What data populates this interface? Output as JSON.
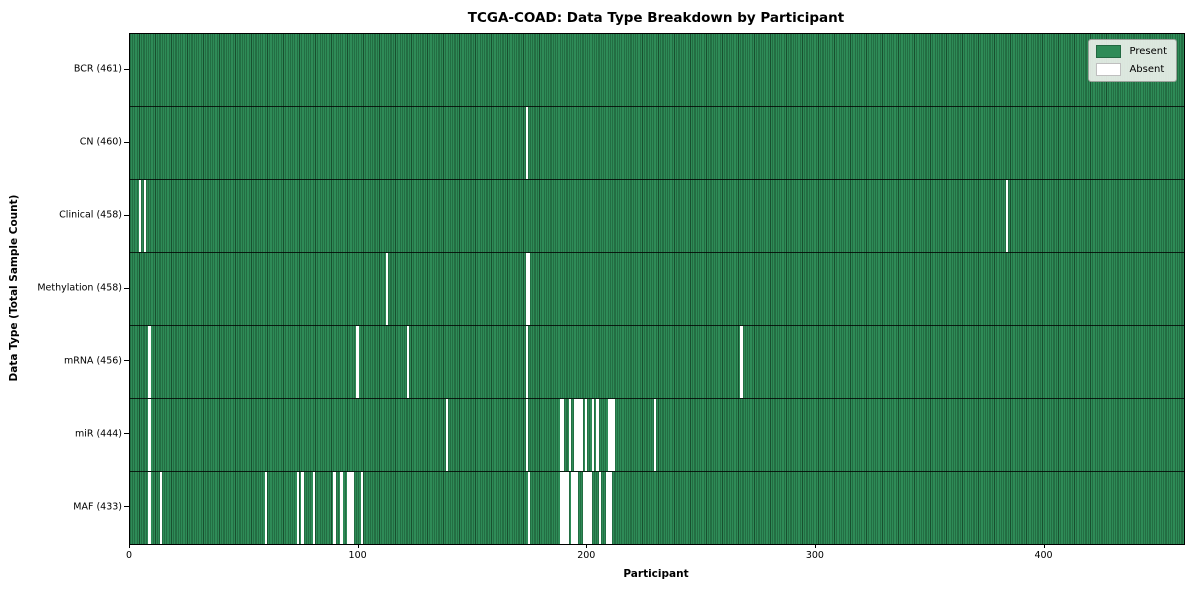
{
  "title": "TCGA-COAD: Data Type Breakdown by Participant",
  "xlabel": "Participant",
  "ylabel": "Data Type (Total Sample Count)",
  "legend": {
    "present_label": "Present",
    "absent_label": "Absent"
  },
  "colors": {
    "present": "#2e8b57",
    "present_edge": "#18502f",
    "absent": "#ffffff",
    "legend_bg": "#ecf0ea"
  },
  "chart_data": {
    "type": "heatmap",
    "title": "TCGA-COAD: Data Type Breakdown by Participant",
    "xlabel": "Participant",
    "ylabel": "Data Type (Total Sample Count)",
    "x_ticks": [
      0,
      100,
      200,
      300,
      400
    ],
    "x_range": [
      0,
      461
    ],
    "total_participants": 461,
    "legend_position": "upper right",
    "rows": [
      {
        "name": "BCR",
        "label": "BCR (461)",
        "count": 461,
        "absent": []
      },
      {
        "name": "CN",
        "label": "CN (460)",
        "count": 460,
        "absent": [
          173
        ]
      },
      {
        "name": "Clinical",
        "label": "Clinical (458)",
        "count": 458,
        "absent": [
          4,
          6,
          383
        ]
      },
      {
        "name": "Methylation",
        "label": "Methylation (458)",
        "count": 458,
        "absent": [
          112,
          173,
          174
        ]
      },
      {
        "name": "mRNA",
        "label": "mRNA (456)",
        "count": 456,
        "absent": [
          8,
          99,
          121,
          173,
          267
        ]
      },
      {
        "name": "miR",
        "label": "miR (444)",
        "count": 444,
        "absent": [
          8,
          138,
          173,
          188,
          189,
          192,
          194,
          195,
          196,
          197,
          199,
          202,
          204,
          209,
          210,
          211,
          229
        ]
      },
      {
        "name": "MAF",
        "label": "MAF (433)",
        "count": 433,
        "absent": [
          8,
          13,
          59,
          73,
          75,
          80,
          89,
          92,
          95,
          96,
          97,
          101,
          174,
          188,
          189,
          190,
          191,
          193,
          194,
          195,
          198,
          199,
          200,
          201,
          205,
          208,
          209,
          210
        ]
      }
    ]
  }
}
